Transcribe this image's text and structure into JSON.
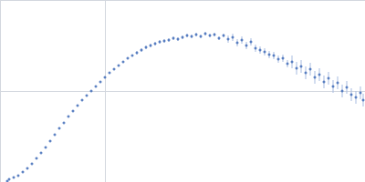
{
  "chart_data": {
    "type": "scatter",
    "x": [
      0.008,
      0.01,
      0.015,
      0.02,
      0.025,
      0.03,
      0.035,
      0.04,
      0.045,
      0.05,
      0.055,
      0.06,
      0.065,
      0.07,
      0.075,
      0.08,
      0.085,
      0.09,
      0.095,
      0.1,
      0.105,
      0.11,
      0.115,
      0.12,
      0.125,
      0.13,
      0.135,
      0.14,
      0.145,
      0.15,
      0.155,
      0.16,
      0.165,
      0.17,
      0.175,
      0.18,
      0.185,
      0.19,
      0.195,
      0.2,
      0.205,
      0.21,
      0.215,
      0.22,
      0.225,
      0.23,
      0.235,
      0.24,
      0.245,
      0.25,
      0.255,
      0.26,
      0.265,
      0.27,
      0.275,
      0.28,
      0.285,
      0.29,
      0.295,
      0.3,
      0.305,
      0.31,
      0.315,
      0.32,
      0.325,
      0.33,
      0.335,
      0.34,
      0.345,
      0.35,
      0.355,
      0.36,
      0.365,
      0.37,
      0.375,
      0.38,
      0.385,
      0.39,
      0.395,
      0.398
    ],
    "values": [
      0.01,
      0.03,
      0.05,
      0.07,
      0.11,
      0.15,
      0.2,
      0.26,
      0.32,
      0.38,
      0.45,
      0.52,
      0.59,
      0.65,
      0.72,
      0.78,
      0.84,
      0.9,
      0.95,
      1.0,
      1.05,
      1.1,
      1.15,
      1.2,
      1.24,
      1.28,
      1.32,
      1.36,
      1.39,
      1.42,
      1.45,
      1.48,
      1.5,
      1.52,
      1.54,
      1.55,
      1.56,
      1.58,
      1.57,
      1.59,
      1.61,
      1.6,
      1.62,
      1.6,
      1.63,
      1.61,
      1.62,
      1.58,
      1.61,
      1.57,
      1.59,
      1.53,
      1.56,
      1.5,
      1.54,
      1.47,
      1.45,
      1.43,
      1.4,
      1.39,
      1.35,
      1.36,
      1.3,
      1.32,
      1.25,
      1.27,
      1.2,
      1.24,
      1.15,
      1.18,
      1.1,
      1.14,
      1.05,
      1.09,
      1.0,
      1.04,
      0.96,
      0.93,
      0.98,
      0.9
    ],
    "errors": [
      0.005,
      0.005,
      0.005,
      0.005,
      0.005,
      0.005,
      0.005,
      0.005,
      0.005,
      0.005,
      0.005,
      0.005,
      0.005,
      0.005,
      0.005,
      0.005,
      0.005,
      0.005,
      0.005,
      0.005,
      0.005,
      0.005,
      0.005,
      0.005,
      0.005,
      0.005,
      0.005,
      0.005,
      0.005,
      0.02,
      0.02,
      0.02,
      0.02,
      0.02,
      0.02,
      0.02,
      0.02,
      0.02,
      0.02,
      0.02,
      0.02,
      0.02,
      0.02,
      0.02,
      0.02,
      0.02,
      0.02,
      0.02,
      0.02,
      0.04,
      0.04,
      0.04,
      0.04,
      0.04,
      0.04,
      0.04,
      0.04,
      0.04,
      0.04,
      0.04,
      0.04,
      0.04,
      0.04,
      0.07,
      0.07,
      0.07,
      0.07,
      0.07,
      0.07,
      0.07,
      0.07,
      0.07,
      0.07,
      0.07,
      0.07,
      0.07,
      0.07,
      0.07,
      0.07,
      0.07
    ],
    "color": "#3a66b5",
    "xlim": [
      0,
      0.4
    ],
    "xticks": [
      0,
      0.115,
      0.4
    ],
    "ylim": [
      0,
      2
    ],
    "yticks": [
      0,
      1,
      2
    ],
    "grid": true,
    "tick_labels": false,
    "marker": "circle"
  }
}
